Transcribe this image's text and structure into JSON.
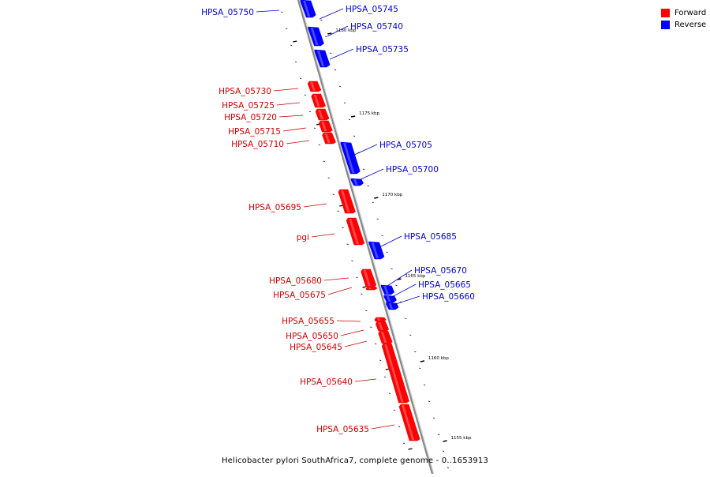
{
  "legend": {
    "forward_label": "Forward",
    "reverse_label": "Reverse",
    "forward_color": "#ff0000",
    "reverse_color": "#0000ff"
  },
  "caption": "Helicobacter pylori SouthAfrica7, complete genome - 0..1653913",
  "colors": {
    "forward_label": "#cc0000",
    "reverse_label": "#0000cc",
    "backbone": "#888888"
  },
  "ticks": [
    {
      "label": "1180 kbp",
      "kbp": 1180
    },
    {
      "label": "1175 kbp",
      "kbp": 1175
    },
    {
      "label": "1170 kbp",
      "kbp": 1170
    },
    {
      "label": "1165 kbp",
      "kbp": 1165
    },
    {
      "label": "1160 kbp",
      "kbp": 1160
    },
    {
      "label": "1155 kbp",
      "kbp": 1155
    }
  ],
  "genes": [
    {
      "name": "HPSA_05750",
      "strand": "reverse"
    },
    {
      "name": "HPSA_05745",
      "strand": "reverse"
    },
    {
      "name": "HPSA_05740",
      "strand": "reverse"
    },
    {
      "name": "HPSA_05735",
      "strand": "reverse"
    },
    {
      "name": "HPSA_05730",
      "strand": "forward"
    },
    {
      "name": "HPSA_05725",
      "strand": "forward"
    },
    {
      "name": "HPSA_05720",
      "strand": "forward"
    },
    {
      "name": "HPSA_05715",
      "strand": "forward"
    },
    {
      "name": "HPSA_05710",
      "strand": "forward"
    },
    {
      "name": "HPSA_05705",
      "strand": "reverse"
    },
    {
      "name": "HPSA_05700",
      "strand": "reverse"
    },
    {
      "name": "HPSA_05695",
      "strand": "forward"
    },
    {
      "name": "pgi",
      "strand": "forward"
    },
    {
      "name": "HPSA_05685",
      "strand": "reverse"
    },
    {
      "name": "HPSA_05680",
      "strand": "forward"
    },
    {
      "name": "HPSA_05675",
      "strand": "forward"
    },
    {
      "name": "HPSA_05670",
      "strand": "reverse"
    },
    {
      "name": "HPSA_05665",
      "strand": "reverse"
    },
    {
      "name": "HPSA_05660",
      "strand": "reverse"
    },
    {
      "name": "HPSA_05655",
      "strand": "forward"
    },
    {
      "name": "HPSA_05650",
      "strand": "forward"
    },
    {
      "name": "HPSA_05645",
      "strand": "forward"
    },
    {
      "name": "HPSA_05640",
      "strand": "forward"
    },
    {
      "name": "HPSA_05635",
      "strand": "forward"
    }
  ]
}
